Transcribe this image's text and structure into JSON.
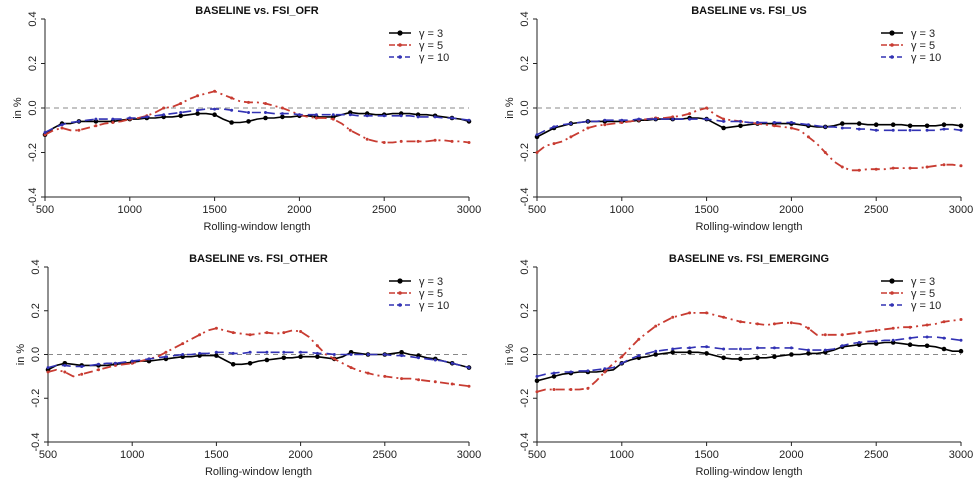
{
  "chart_data": [
    {
      "type": "line",
      "title": "BASELINE vs. FSI_OFR",
      "xlabel": "Rolling-window length",
      "ylabel": "in %",
      "xlim": [
        500,
        3000
      ],
      "ylim": [
        -0.4,
        0.4
      ],
      "xticks": [
        "500",
        "1000",
        "1500",
        "2000",
        "2500",
        "3000"
      ],
      "yticks": [
        "-0.4",
        "-0.2",
        "0.0",
        "0.2",
        "0.4"
      ],
      "reference_line": 0,
      "legend_position": "top-right",
      "x": [
        500,
        550,
        600,
        650,
        700,
        750,
        800,
        850,
        900,
        950,
        1000,
        1050,
        1100,
        1150,
        1200,
        1250,
        1300,
        1350,
        1400,
        1450,
        1500,
        1550,
        1600,
        1650,
        1700,
        1750,
        1800,
        1850,
        1900,
        1950,
        2000,
        2050,
        2100,
        2150,
        2200,
        2250,
        2300,
        2350,
        2400,
        2450,
        2500,
        2550,
        2600,
        2650,
        2700,
        2750,
        2800,
        2850,
        2900,
        2950,
        3000
      ],
      "series": [
        {
          "name": "γ = 3",
          "color": "#000000",
          "values": [
            -0.12,
            -0.09,
            -0.07,
            -0.07,
            -0.06,
            -0.06,
            -0.06,
            -0.06,
            -0.06,
            -0.055,
            -0.05,
            -0.05,
            -0.045,
            -0.045,
            -0.04,
            -0.04,
            -0.035,
            -0.03,
            -0.025,
            -0.025,
            -0.03,
            -0.05,
            -0.065,
            -0.065,
            -0.06,
            -0.05,
            -0.045,
            -0.045,
            -0.04,
            -0.04,
            -0.035,
            -0.035,
            -0.04,
            -0.04,
            -0.04,
            -0.03,
            -0.02,
            -0.025,
            -0.025,
            -0.03,
            -0.03,
            -0.025,
            -0.025,
            -0.025,
            -0.03,
            -0.03,
            -0.035,
            -0.04,
            -0.045,
            -0.05,
            -0.06
          ]
        },
        {
          "name": "γ = 5",
          "color": "#c83c32",
          "values": [
            -0.12,
            -0.1,
            -0.09,
            -0.1,
            -0.1,
            -0.09,
            -0.08,
            -0.07,
            -0.065,
            -0.06,
            -0.05,
            -0.045,
            -0.035,
            -0.02,
            0.0,
            0.005,
            0.02,
            0.04,
            0.055,
            0.065,
            0.075,
            0.06,
            0.045,
            0.03,
            0.025,
            0.025,
            0.02,
            0.01,
            0.0,
            -0.015,
            -0.03,
            -0.04,
            -0.045,
            -0.045,
            -0.05,
            -0.07,
            -0.1,
            -0.12,
            -0.14,
            -0.15,
            -0.155,
            -0.155,
            -0.15,
            -0.15,
            -0.15,
            -0.15,
            -0.145,
            -0.145,
            -0.15,
            -0.15,
            -0.155
          ]
        },
        {
          "name": "γ = 10",
          "color": "#3232b4",
          "values": [
            -0.11,
            -0.09,
            -0.075,
            -0.065,
            -0.06,
            -0.055,
            -0.05,
            -0.05,
            -0.05,
            -0.05,
            -0.045,
            -0.045,
            -0.04,
            -0.035,
            -0.03,
            -0.025,
            -0.02,
            -0.015,
            -0.01,
            -0.005,
            -0.005,
            -0.005,
            -0.01,
            -0.015,
            -0.02,
            -0.02,
            -0.02,
            -0.025,
            -0.025,
            -0.025,
            -0.03,
            -0.03,
            -0.03,
            -0.03,
            -0.03,
            -0.03,
            -0.03,
            -0.035,
            -0.035,
            -0.035,
            -0.035,
            -0.035,
            -0.035,
            -0.035,
            -0.04,
            -0.04,
            -0.04,
            -0.045,
            -0.045,
            -0.05,
            -0.055
          ]
        }
      ]
    },
    {
      "type": "line",
      "title": "BASELINE vs. FSI_US",
      "xlabel": "Rolling-window length",
      "ylabel": "in %",
      "xlim": [
        500,
        3000
      ],
      "ylim": [
        -0.4,
        0.4
      ],
      "xticks": [
        "500",
        "1000",
        "1500",
        "2000",
        "2500",
        "3000"
      ],
      "yticks": [
        "-0.4",
        "-0.2",
        "0.0",
        "0.2",
        "0.4"
      ],
      "reference_line": 0,
      "legend_position": "top-right",
      "x": [
        500,
        550,
        600,
        650,
        700,
        750,
        800,
        850,
        900,
        950,
        1000,
        1050,
        1100,
        1150,
        1200,
        1250,
        1300,
        1350,
        1400,
        1450,
        1500,
        1550,
        1600,
        1650,
        1700,
        1750,
        1800,
        1850,
        1900,
        1950,
        2000,
        2050,
        2100,
        2150,
        2200,
        2250,
        2300,
        2350,
        2400,
        2450,
        2500,
        2550,
        2600,
        2650,
        2700,
        2750,
        2800,
        2850,
        2900,
        2950,
        3000
      ],
      "series": [
        {
          "name": "γ = 3",
          "color": "#000000",
          "values": [
            -0.13,
            -0.11,
            -0.09,
            -0.08,
            -0.07,
            -0.065,
            -0.06,
            -0.06,
            -0.06,
            -0.06,
            -0.06,
            -0.06,
            -0.055,
            -0.055,
            -0.05,
            -0.05,
            -0.05,
            -0.05,
            -0.045,
            -0.045,
            -0.05,
            -0.07,
            -0.09,
            -0.085,
            -0.08,
            -0.075,
            -0.07,
            -0.07,
            -0.07,
            -0.07,
            -0.07,
            -0.075,
            -0.08,
            -0.085,
            -0.085,
            -0.08,
            -0.07,
            -0.07,
            -0.07,
            -0.075,
            -0.075,
            -0.075,
            -0.075,
            -0.075,
            -0.08,
            -0.08,
            -0.08,
            -0.08,
            -0.075,
            -0.075,
            -0.08
          ]
        },
        {
          "name": "γ = 5",
          "color": "#c83c32",
          "values": [
            -0.2,
            -0.17,
            -0.16,
            -0.15,
            -0.13,
            -0.11,
            -0.09,
            -0.08,
            -0.075,
            -0.07,
            -0.065,
            -0.06,
            -0.055,
            -0.05,
            -0.045,
            -0.045,
            -0.04,
            -0.035,
            -0.025,
            -0.01,
            0.0,
            -0.03,
            -0.05,
            -0.055,
            -0.06,
            -0.065,
            -0.07,
            -0.075,
            -0.08,
            -0.085,
            -0.09,
            -0.1,
            -0.13,
            -0.16,
            -0.2,
            -0.24,
            -0.265,
            -0.28,
            -0.28,
            -0.275,
            -0.275,
            -0.275,
            -0.27,
            -0.27,
            -0.27,
            -0.27,
            -0.265,
            -0.26,
            -0.255,
            -0.255,
            -0.26
          ]
        },
        {
          "name": "γ = 10",
          "color": "#3232b4",
          "values": [
            -0.12,
            -0.1,
            -0.085,
            -0.075,
            -0.07,
            -0.065,
            -0.06,
            -0.06,
            -0.055,
            -0.055,
            -0.055,
            -0.055,
            -0.05,
            -0.05,
            -0.05,
            -0.05,
            -0.05,
            -0.05,
            -0.05,
            -0.05,
            -0.05,
            -0.055,
            -0.06,
            -0.06,
            -0.06,
            -0.065,
            -0.065,
            -0.065,
            -0.065,
            -0.065,
            -0.065,
            -0.07,
            -0.075,
            -0.08,
            -0.085,
            -0.085,
            -0.09,
            -0.09,
            -0.095,
            -0.095,
            -0.1,
            -0.1,
            -0.1,
            -0.1,
            -0.1,
            -0.1,
            -0.1,
            -0.1,
            -0.095,
            -0.095,
            -0.1
          ]
        }
      ]
    },
    {
      "type": "line",
      "title": "BASELINE vs. FSI_OTHER",
      "xlabel": "Rolling-window length",
      "ylabel": "in %",
      "xlim": [
        500,
        3000
      ],
      "ylim": [
        -0.4,
        0.4
      ],
      "xticks": [
        "500",
        "1000",
        "1500",
        "2000",
        "2500",
        "3000"
      ],
      "yticks": [
        "-0.4",
        "-0.2",
        "0.0",
        "0.2",
        "0.4"
      ],
      "reference_line": 0,
      "legend_position": "top-right",
      "x": [
        500,
        550,
        600,
        650,
        700,
        750,
        800,
        850,
        900,
        950,
        1000,
        1050,
        1100,
        1150,
        1200,
        1250,
        1300,
        1350,
        1400,
        1450,
        1500,
        1550,
        1600,
        1650,
        1700,
        1750,
        1800,
        1850,
        1900,
        1950,
        2000,
        2050,
        2100,
        2150,
        2200,
        2250,
        2300,
        2350,
        2400,
        2450,
        2500,
        2550,
        2600,
        2650,
        2700,
        2750,
        2800,
        2850,
        2900,
        2950,
        3000
      ],
      "series": [
        {
          "name": "γ = 3",
          "color": "#000000",
          "values": [
            -0.07,
            -0.05,
            -0.04,
            -0.045,
            -0.05,
            -0.05,
            -0.05,
            -0.05,
            -0.045,
            -0.04,
            -0.035,
            -0.03,
            -0.03,
            -0.025,
            -0.02,
            -0.015,
            -0.01,
            -0.01,
            -0.005,
            -0.005,
            -0.005,
            -0.025,
            -0.045,
            -0.045,
            -0.04,
            -0.03,
            -0.025,
            -0.02,
            -0.015,
            -0.015,
            -0.01,
            -0.01,
            -0.01,
            -0.015,
            -0.02,
            -0.01,
            0.01,
            0.005,
            0.0,
            0.0,
            0.0,
            0.005,
            0.01,
            0.0,
            -0.005,
            -0.015,
            -0.02,
            -0.03,
            -0.04,
            -0.05,
            -0.06
          ]
        },
        {
          "name": "γ = 5",
          "color": "#c83c32",
          "values": [
            -0.08,
            -0.07,
            -0.08,
            -0.1,
            -0.09,
            -0.08,
            -0.07,
            -0.06,
            -0.05,
            -0.045,
            -0.04,
            -0.03,
            -0.02,
            -0.01,
            0.01,
            0.03,
            0.05,
            0.07,
            0.09,
            0.11,
            0.12,
            0.11,
            0.1,
            0.095,
            0.09,
            0.095,
            0.1,
            0.095,
            0.1,
            0.11,
            0.105,
            0.08,
            0.04,
            0.0,
            -0.02,
            -0.04,
            -0.06,
            -0.075,
            -0.085,
            -0.095,
            -0.1,
            -0.105,
            -0.11,
            -0.11,
            -0.115,
            -0.12,
            -0.125,
            -0.13,
            -0.135,
            -0.14,
            -0.145
          ]
        },
        {
          "name": "γ = 10",
          "color": "#3232b4",
          "values": [
            -0.06,
            -0.05,
            -0.05,
            -0.055,
            -0.055,
            -0.05,
            -0.045,
            -0.04,
            -0.04,
            -0.035,
            -0.03,
            -0.025,
            -0.02,
            -0.015,
            -0.01,
            -0.005,
            0.0,
            0.0,
            0.005,
            0.005,
            0.01,
            0.01,
            0.005,
            0.005,
            0.01,
            0.01,
            0.01,
            0.01,
            0.01,
            0.01,
            0.01,
            0.01,
            0.005,
            0.005,
            0.0,
            0.0,
            0.0,
            0.0,
            0.0,
            0.0,
            0.0,
            -0.005,
            -0.005,
            -0.01,
            -0.015,
            -0.02,
            -0.025,
            -0.03,
            -0.04,
            -0.05,
            -0.06
          ]
        }
      ]
    },
    {
      "type": "line",
      "title": "BASELINE vs. FSI_EMERGING",
      "xlabel": "Rolling-window length",
      "ylabel": "in %",
      "xlim": [
        500,
        3000
      ],
      "ylim": [
        -0.4,
        0.4
      ],
      "xticks": [
        "500",
        "1000",
        "1500",
        "2000",
        "2500",
        "3000"
      ],
      "yticks": [
        "-0.4",
        "-0.2",
        "0.0",
        "0.2",
        "0.4"
      ],
      "reference_line": 0,
      "legend_position": "top-right",
      "x": [
        500,
        550,
        600,
        650,
        700,
        750,
        800,
        850,
        900,
        950,
        1000,
        1050,
        1100,
        1150,
        1200,
        1250,
        1300,
        1350,
        1400,
        1450,
        1500,
        1550,
        1600,
        1650,
        1700,
        1750,
        1800,
        1850,
        1900,
        1950,
        2000,
        2050,
        2100,
        2150,
        2200,
        2250,
        2300,
        2350,
        2400,
        2450,
        2500,
        2550,
        2600,
        2650,
        2700,
        2750,
        2800,
        2850,
        2900,
        2950,
        3000
      ],
      "series": [
        {
          "name": "γ = 3",
          "color": "#000000",
          "values": [
            -0.12,
            -0.11,
            -0.1,
            -0.09,
            -0.085,
            -0.08,
            -0.08,
            -0.08,
            -0.075,
            -0.07,
            -0.04,
            -0.025,
            -0.015,
            -0.01,
            0.0,
            0.005,
            0.01,
            0.01,
            0.01,
            0.01,
            0.005,
            -0.005,
            -0.015,
            -0.02,
            -0.02,
            -0.02,
            -0.015,
            -0.015,
            -0.01,
            -0.005,
            0.0,
            0.0,
            0.005,
            0.005,
            0.01,
            0.02,
            0.035,
            0.04,
            0.045,
            0.05,
            0.05,
            0.055,
            0.055,
            0.05,
            0.045,
            0.04,
            0.04,
            0.035,
            0.025,
            0.015,
            0.015
          ]
        },
        {
          "name": "γ = 5",
          "color": "#c83c32",
          "values": [
            -0.17,
            -0.16,
            -0.16,
            -0.16,
            -0.16,
            -0.16,
            -0.155,
            -0.12,
            -0.08,
            -0.04,
            -0.01,
            0.03,
            0.07,
            0.1,
            0.13,
            0.15,
            0.17,
            0.18,
            0.19,
            0.19,
            0.19,
            0.18,
            0.17,
            0.16,
            0.15,
            0.145,
            0.14,
            0.135,
            0.14,
            0.145,
            0.145,
            0.14,
            0.12,
            0.09,
            0.09,
            0.09,
            0.09,
            0.095,
            0.1,
            0.105,
            0.11,
            0.115,
            0.12,
            0.125,
            0.125,
            0.13,
            0.135,
            0.14,
            0.15,
            0.155,
            0.16
          ]
        },
        {
          "name": "γ = 10",
          "color": "#3232b4",
          "values": [
            -0.1,
            -0.09,
            -0.085,
            -0.08,
            -0.08,
            -0.075,
            -0.075,
            -0.07,
            -0.065,
            -0.06,
            -0.04,
            -0.02,
            -0.005,
            0.005,
            0.015,
            0.02,
            0.025,
            0.03,
            0.03,
            0.035,
            0.035,
            0.03,
            0.025,
            0.025,
            0.025,
            0.025,
            0.03,
            0.03,
            0.03,
            0.03,
            0.03,
            0.025,
            0.02,
            0.02,
            0.02,
            0.025,
            0.04,
            0.05,
            0.055,
            0.06,
            0.06,
            0.065,
            0.065,
            0.07,
            0.075,
            0.08,
            0.08,
            0.08,
            0.075,
            0.07,
            0.065
          ]
        }
      ]
    }
  ]
}
